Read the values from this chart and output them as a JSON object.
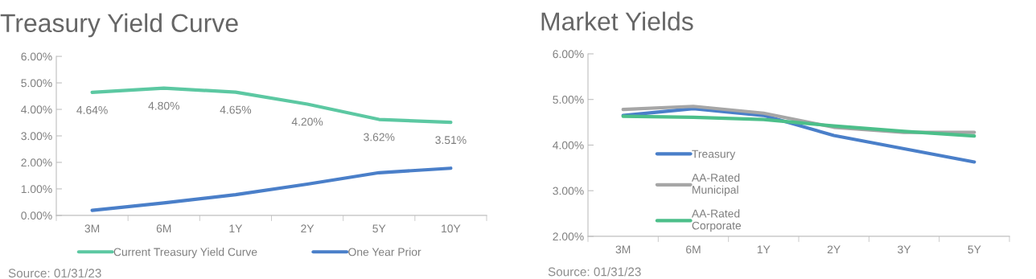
{
  "chart_data": [
    {
      "type": "line",
      "title": "Treasury Yield Curve",
      "categories": [
        "3M",
        "6M",
        "1Y",
        "2Y",
        "5Y",
        "10Y"
      ],
      "series": [
        {
          "name": "Current Treasury Yield Curve",
          "color": "#5cc8a2",
          "values": [
            4.64,
            4.8,
            4.65,
            4.2,
            3.62,
            3.51
          ],
          "value_labels": [
            "4.64%",
            "4.80%",
            "4.65%",
            "4.20%",
            "3.62%",
            "3.51%"
          ]
        },
        {
          "name": "One Year Prior",
          "color": "#4a7fc9",
          "values": [
            0.19,
            0.47,
            0.78,
            1.18,
            1.61,
            1.78
          ]
        }
      ],
      "ylim": [
        0,
        6
      ],
      "yticks": [
        {
          "value": 0,
          "label": "0.00%"
        },
        {
          "value": 1,
          "label": "1.00%"
        },
        {
          "value": 2,
          "label": "2.00%"
        },
        {
          "value": 3,
          "label": "3.00%"
        },
        {
          "value": 4,
          "label": "4.00%"
        },
        {
          "value": 5,
          "label": "5.00%"
        },
        {
          "value": 6,
          "label": "6.00%"
        }
      ],
      "legend": "bottom",
      "grid": false,
      "marker": "none",
      "line_style": "solid",
      "annotations": [
        "Source: 01/31/23"
      ]
    },
    {
      "type": "line",
      "title": "Market Yields",
      "categories": [
        "3M",
        "6M",
        "1Y",
        "2Y",
        "3Y",
        "5Y"
      ],
      "series": [
        {
          "name": "Treasury",
          "color": "#4a7fc9",
          "values": [
            4.65,
            4.8,
            4.65,
            4.21,
            3.92,
            3.63
          ]
        },
        {
          "name": "AA-Rated\nMunicipal",
          "color": "#a6a6a6",
          "values": [
            4.78,
            4.85,
            4.7,
            4.39,
            4.28,
            4.28
          ]
        },
        {
          "name": "AA-Rated\nCorporate",
          "color": "#4cbf8a",
          "values": [
            4.63,
            4.61,
            4.56,
            4.42,
            4.3,
            4.2
          ]
        }
      ],
      "ylim": [
        2,
        6
      ],
      "yticks": [
        {
          "value": 2,
          "label": "2.00%"
        },
        {
          "value": 3,
          "label": "3.00%"
        },
        {
          "value": 4,
          "label": "4.00%"
        },
        {
          "value": 5,
          "label": "5.00%"
        },
        {
          "value": 6,
          "label": "6.00%"
        }
      ],
      "legend": "left",
      "grid": false,
      "marker": "none",
      "line_style": "solid",
      "annotations": [
        "Source: 01/31/23"
      ]
    }
  ]
}
